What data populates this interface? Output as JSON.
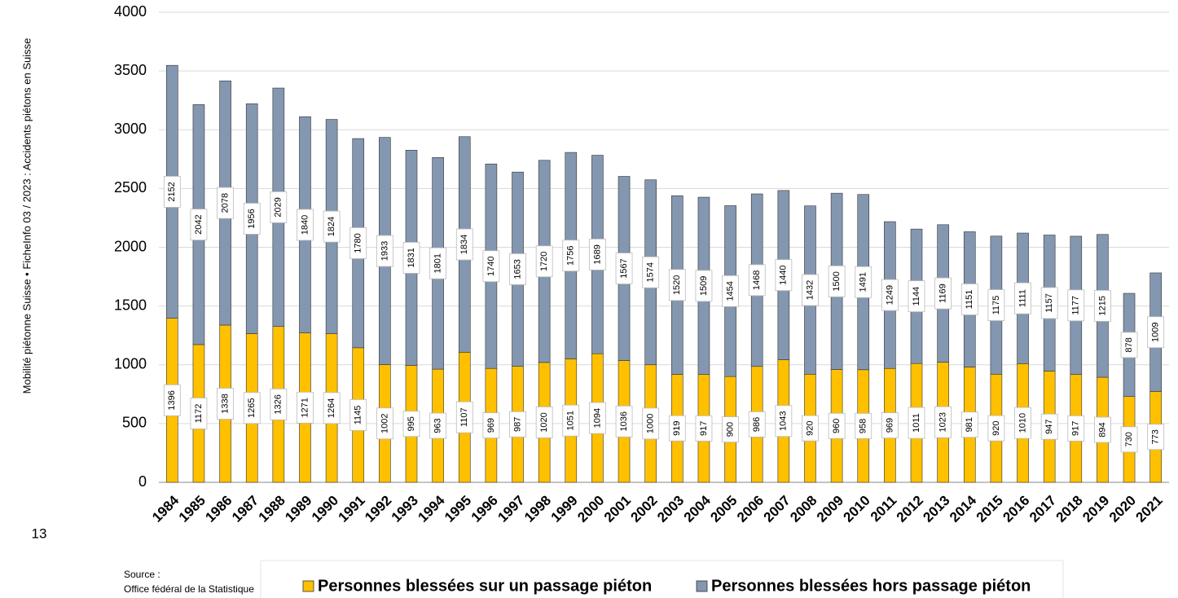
{
  "sidebar": "Mobilité piétonne Suisse • FicheInfo 03 / 2023 : Accidents piétons en Suisse",
  "page_number": "13",
  "source": [
    "Source :",
    "Office fédéral de la Statistique"
  ],
  "chart_data": {
    "type": "stacked_bar",
    "categories": [
      "1984",
      "1985",
      "1986",
      "1987",
      "1988",
      "1989",
      "1990",
      "1991",
      "1992",
      "1993",
      "1994",
      "1995",
      "1996",
      "1997",
      "1998",
      "1999",
      "2000",
      "2001",
      "2002",
      "2003",
      "2004",
      "2005",
      "2006",
      "2007",
      "2008",
      "2009",
      "2010",
      "2011",
      "2012",
      "2013",
      "2014",
      "2015",
      "2016",
      "2017",
      "2018",
      "2019",
      "2020",
      "2021"
    ],
    "series": [
      {
        "name": "Personnes blessées sur un passage piéton",
        "color": "#ffc000",
        "values": [
          1396,
          1172,
          1338,
          1265,
          1326,
          1271,
          1264,
          1145,
          1002,
          995,
          963,
          1107,
          969,
          987,
          1020,
          1051,
          1094,
          1036,
          1000,
          919,
          917,
          900,
          986,
          1043,
          920,
          960,
          958,
          969,
          1011,
          1023,
          981,
          920,
          1010,
          947,
          917,
          894,
          730,
          773
        ]
      },
      {
        "name": "Personnes blessées hors passage piéton",
        "color": "#8497b0",
        "values": [
          2152,
          2042,
          2078,
          1956,
          2029,
          1840,
          1824,
          1780,
          1933,
          1831,
          1801,
          1834,
          1740,
          1653,
          1720,
          1756,
          1689,
          1567,
          1574,
          1520,
          1509,
          1454,
          1468,
          1440,
          1432,
          1500,
          1491,
          1249,
          1144,
          1169,
          1151,
          1175,
          1111,
          1157,
          1177,
          1215,
          878,
          1009
        ]
      }
    ],
    "ylim": [
      0,
      4000
    ],
    "yticks": [
      0,
      500,
      1000,
      1500,
      2000,
      2500,
      3000,
      3500,
      4000
    ],
    "grid": true,
    "legend": "bottom"
  }
}
